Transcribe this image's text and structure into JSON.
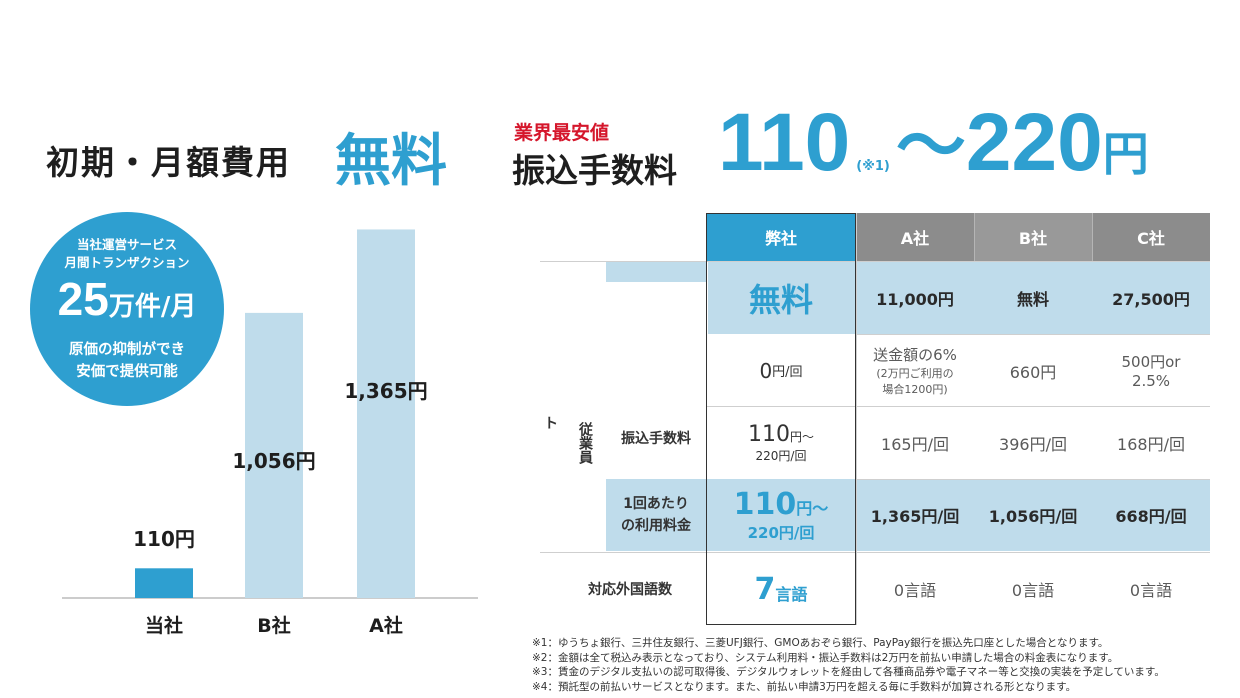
{
  "headline": {
    "initial_monthly_label": "初期・月額費用",
    "initial_monthly_value": "無料",
    "cheapest_tag": "業界最安値",
    "fee_label": "振込手数料",
    "fee_min": "110",
    "fee_note": "(※1)",
    "fee_tilde": "～",
    "fee_max": "220",
    "fee_unit": "円"
  },
  "badge": {
    "line1": "当社運営サービス",
    "line2": "月間トランザクション",
    "count": "25",
    "unit": "万件/月",
    "line4": "原価の抑制ができ",
    "line5": "安価で提供可能"
  },
  "chart_data": {
    "type": "bar",
    "categories": [
      "当社",
      "B社",
      "A社"
    ],
    "values": [
      110,
      1056,
      1365
    ],
    "value_labels": [
      "110円",
      "1,056円",
      "1,365円"
    ],
    "title": "",
    "xlabel": "",
    "ylabel": "",
    "ylim": [
      0,
      1400
    ],
    "grid": false,
    "colors": [
      "#2e9fd0",
      "#bfdceb",
      "#bfdceb"
    ]
  },
  "table": {
    "headers": [
      "弊社",
      "A社",
      "B社",
      "C社"
    ],
    "row_headers": {
      "cut_top": "",
      "side_left": "ト",
      "employee": "従業員",
      "transfer_fee": "振込手数料",
      "per_use": "1回あたり\nの利用料金",
      "languages": "対応外国語数"
    },
    "rows": [
      {
        "ours": "無料",
        "a": "11,000円",
        "b": "無料",
        "c": "27,500円"
      },
      {
        "ours_num": "0",
        "ours_unit": "円/回",
        "a_main": "送金額の6%",
        "a_sub1": "(2万円ご利用の",
        "a_sub2": "場合1200円)",
        "b": "660円",
        "c_line1": "500円or",
        "c_line2": "2.5%"
      },
      {
        "ours_num": "110",
        "ours_unit": "円～",
        "ours_sub": "220円/回",
        "a": "165円/回",
        "b": "396円/回",
        "c": "168円/回"
      },
      {
        "ours_num": "110",
        "ours_unit": "円～",
        "ours_sub": "220円/回",
        "a": "1,365円/回",
        "b": "1,056円/回",
        "c": "668円/回"
      },
      {
        "ours_num": "7",
        "ours_unit": "言語",
        "a": "0言語",
        "b": "0言語",
        "c": "0言語"
      }
    ]
  },
  "footnotes": [
    "※1：ゆうちょ銀行、三井住友銀行、三菱UFJ銀行、GMOあおぞら銀行、PayPay銀行を振込先口座とした場合となります。",
    "※2：金額は全て税込み表示となっており、システム利用料・振込手数料は2万円を前払い申請した場合の料金表になります。",
    "※3：賃金のデジタル支払いの認可取得後、デジタルウォレットを経由して各種商品券や電子マネー等と交換の実装を予定しています。",
    "※4：預託型の前払いサービスとなります。また、前払い申請3万円を超える毎に手数料が加算される形となります。"
  ],
  "colors": {
    "accent": "#2e9fd0",
    "highlight": "#d5162b",
    "light_blue": "#bfdceb",
    "header_grey": "#8c8c8c"
  }
}
